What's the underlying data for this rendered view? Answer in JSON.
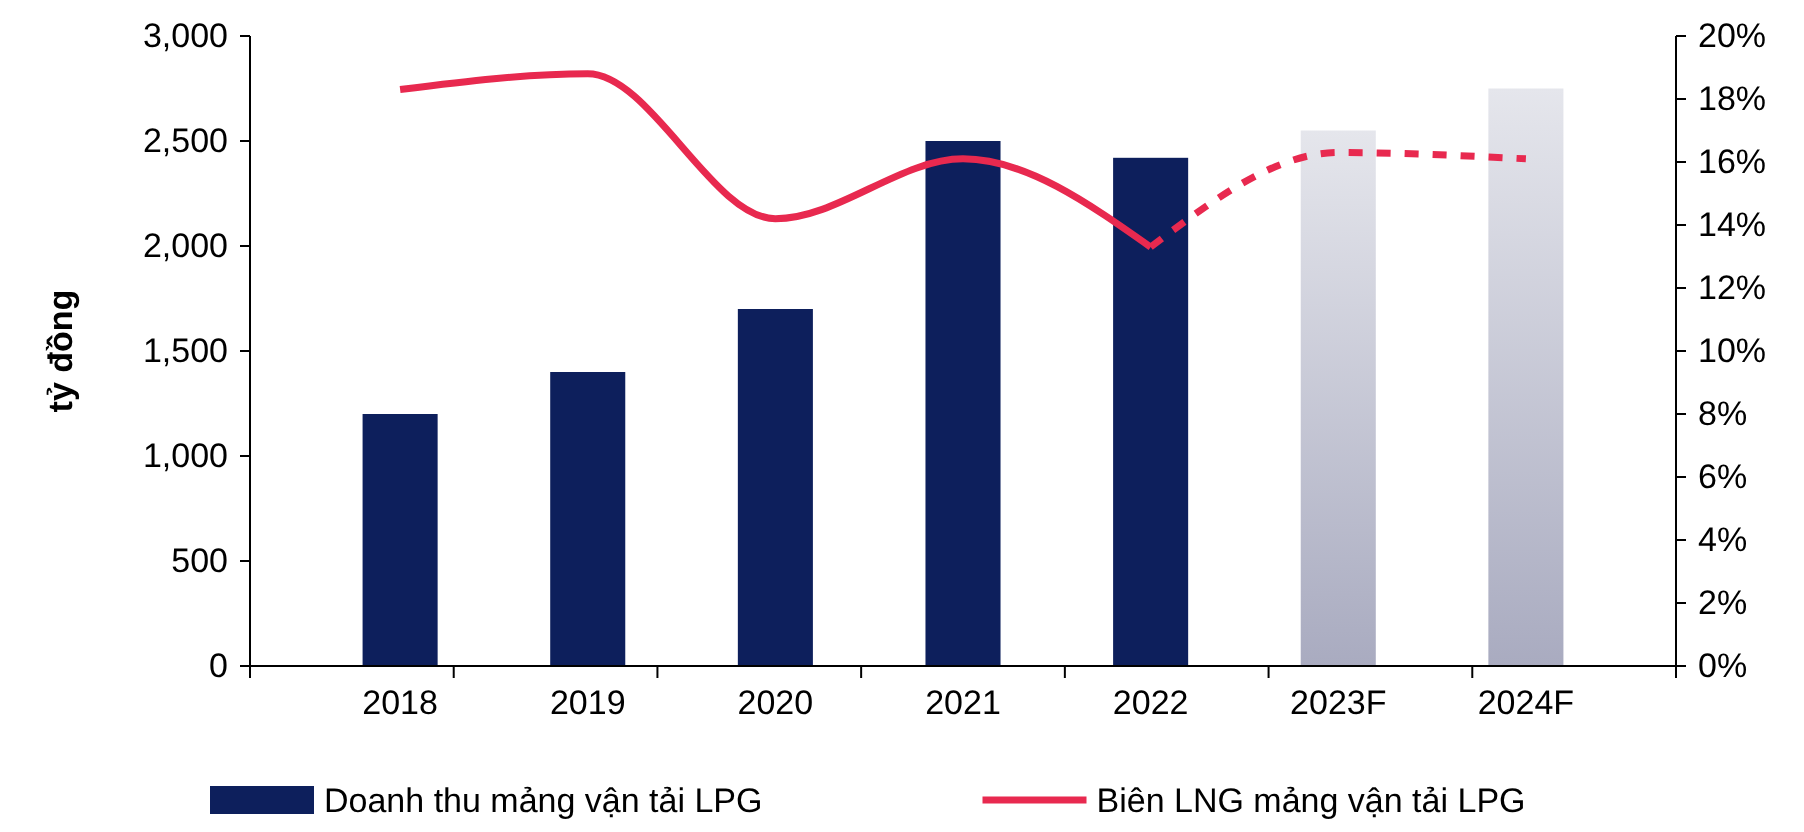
{
  "chart_data": {
    "type": "bar",
    "ylabel": "tỷ đồng",
    "categories": [
      "2018",
      "2019",
      "2020",
      "2021",
      "2022",
      "2023F",
      "2024F"
    ],
    "series": [
      {
        "name": "Doanh thu mảng vận tải LPG",
        "colors": [
          "#0d1f5c",
          "#0d1f5c",
          "#0d1f5c",
          "#0d1f5c",
          "#0d1f5c",
          "#a9abc0",
          "#a9abc0"
        ],
        "values": [
          1200,
          1400,
          1700,
          2500,
          2420,
          2550,
          2750
        ]
      },
      {
        "name": "Biên LNG mảng vận tải LPG",
        "type": "line",
        "axis": "y2",
        "color": "#e8294f",
        "line_style": "solid",
        "values": [
          18.3,
          18.8,
          14.2,
          16.1,
          13.3,
          null,
          null
        ]
      },
      {
        "type": "line",
        "axis": "y2",
        "color": "#e8294f",
        "line_style": "dashed",
        "values": [
          null,
          null,
          null,
          null,
          13.3,
          16.3,
          16.1
        ]
      }
    ],
    "ylim": [
      0,
      3000
    ],
    "yticks": [
      0,
      {
        "value": 500,
        "label": "500"
      },
      {
        "value": 1000,
        "label": "1,000"
      },
      {
        "value": 1500,
        "label": "1,500"
      },
      {
        "value": 2000,
        "label": "2,000"
      },
      {
        "value": 2500,
        "label": "2,500"
      },
      {
        "value": 3000,
        "label": "3,000"
      }
    ],
    "y2lim": [
      0,
      20
    ],
    "y2ticks": [
      {
        "value": 0,
        "label": "0%"
      },
      {
        "value": 2,
        "label": "2%"
      },
      {
        "value": 4,
        "label": "4%"
      },
      {
        "value": 6,
        "label": "6%"
      },
      {
        "value": 8,
        "label": "8%"
      },
      {
        "value": 10,
        "label": "10%"
      },
      {
        "value": 12,
        "label": "12%"
      },
      {
        "value": 14,
        "label": "14%"
      },
      {
        "value": 16,
        "label": "16%"
      },
      {
        "value": 18,
        "label": "18%"
      },
      {
        "value": 20,
        "label": "20%"
      }
    ],
    "grid": false,
    "legend": "bottom"
  }
}
